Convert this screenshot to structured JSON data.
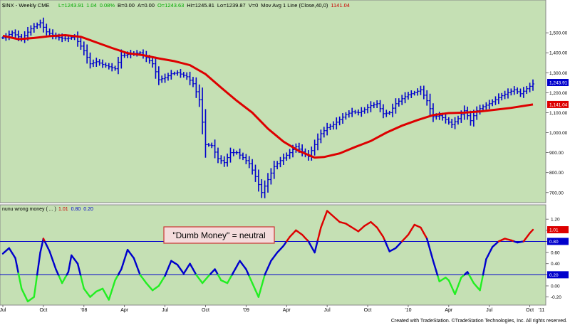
{
  "header": {
    "symbol": "$INX - Weekly  CME",
    "quote_fields": [
      {
        "text": "L=1243.91",
        "color": "#00aa00"
      },
      {
        "text": "1.04",
        "color": "#00aa00"
      },
      {
        "text": "0.08%",
        "color": "#00aa00"
      },
      {
        "text": "B=0.00",
        "color": "#000000"
      },
      {
        "text": "A=0.00",
        "color": "#000000"
      },
      {
        "text": "O=1243.63",
        "color": "#00aa00"
      },
      {
        "text": "Hi=1245.81",
        "color": "#000000"
      },
      {
        "text": "Lo=1239.87",
        "color": "#000000"
      },
      {
        "text": "V=0",
        "color": "#000000"
      },
      {
        "text": "Mov Avg 1 Line (Close,40,0)",
        "color": "#000000"
      },
      {
        "text": "1141.04",
        "color": "#cc0000"
      }
    ]
  },
  "indicator_header": {
    "name": "nunu wrong money ( ... )",
    "values": [
      {
        "text": "1.01",
        "color": "#cc0000"
      },
      {
        "text": "0.80",
        "color": "#0000cc"
      },
      {
        "text": "0.20",
        "color": "#0000cc"
      }
    ]
  },
  "annotation": "\"Dumb Money\" = neutral",
  "footer": "Created with TradeStation. ©TradeStation Technologies, Inc. All rights reserved.",
  "colors": {
    "plot_bg": "#c5e0b4",
    "price_bar": "#0000cc",
    "moving_average": "#dd0000",
    "indicator_high": "#dd0000",
    "indicator_mid": "#0000cc",
    "indicator_low": "#22ee22",
    "threshold_line": "#0000cc",
    "annotation_border": "#cc3333",
    "annotation_bg": "#f4dcdc"
  },
  "chart_data": [
    {
      "type": "candlestick",
      "title": "$INX - Weekly",
      "ylim": [
        660,
        1650
      ],
      "yticks": [
        700,
        800,
        900,
        1000,
        1100,
        1200,
        1300,
        1400,
        1500
      ],
      "ytick_labels": [
        "700.00",
        "800.00",
        "900.00",
        "1,000.00",
        "1,100.00",
        "1,200.00",
        "1,300.00",
        "1,400.00",
        "1,500.00"
      ],
      "last_price_label": "1,243.91",
      "ma_label": "1,141.04",
      "x_labels": [
        "Jul",
        "Oct",
        "'08",
        "Apr",
        "Jul",
        "Oct",
        "'09",
        "Apr",
        "Jul",
        "Oct",
        "'10",
        "Apr",
        "Jul",
        "Oct",
        "'11"
      ],
      "price_path": [
        {
          "week": 0,
          "close": 1475
        },
        {
          "week": 3,
          "close": 1500
        },
        {
          "week": 6,
          "close": 1470
        },
        {
          "week": 9,
          "close": 1520
        },
        {
          "week": 12,
          "close": 1550
        },
        {
          "week": 14,
          "close": 1505
        },
        {
          "week": 17,
          "close": 1480
        },
        {
          "week": 20,
          "close": 1470
        },
        {
          "week": 23,
          "close": 1480
        },
        {
          "week": 26,
          "close": 1410
        },
        {
          "week": 28,
          "close": 1345
        },
        {
          "week": 30,
          "close": 1355
        },
        {
          "week": 33,
          "close": 1335
        },
        {
          "week": 36,
          "close": 1320
        },
        {
          "week": 38,
          "close": 1385
        },
        {
          "week": 41,
          "close": 1395
        },
        {
          "week": 44,
          "close": 1400
        },
        {
          "week": 46,
          "close": 1375
        },
        {
          "week": 48,
          "close": 1345
        },
        {
          "week": 50,
          "close": 1265
        },
        {
          "week": 52,
          "close": 1275
        },
        {
          "week": 54,
          "close": 1295
        },
        {
          "week": 56,
          "close": 1300
        },
        {
          "week": 59,
          "close": 1280
        },
        {
          "week": 61,
          "close": 1245
        },
        {
          "week": 63,
          "close": 1165
        },
        {
          "week": 65,
          "close": 940
        },
        {
          "week": 67,
          "close": 935
        },
        {
          "week": 69,
          "close": 870
        },
        {
          "week": 71,
          "close": 850
        },
        {
          "week": 73,
          "close": 900
        },
        {
          "week": 75,
          "close": 900
        },
        {
          "week": 77,
          "close": 875
        },
        {
          "week": 79,
          "close": 845
        },
        {
          "week": 81,
          "close": 780
        },
        {
          "week": 83,
          "close": 700
        },
        {
          "week": 85,
          "close": 765
        },
        {
          "week": 87,
          "close": 830
        },
        {
          "week": 89,
          "close": 860
        },
        {
          "week": 92,
          "close": 900
        },
        {
          "week": 94,
          "close": 930
        },
        {
          "week": 96,
          "close": 905
        },
        {
          "week": 98,
          "close": 880
        },
        {
          "week": 100,
          "close": 940
        },
        {
          "week": 102,
          "close": 995
        },
        {
          "week": 104,
          "close": 1025
        },
        {
          "week": 106,
          "close": 1040
        },
        {
          "week": 108,
          "close": 1065
        },
        {
          "week": 110,
          "close": 1090
        },
        {
          "week": 112,
          "close": 1105
        },
        {
          "week": 114,
          "close": 1100
        },
        {
          "week": 116,
          "close": 1115
        },
        {
          "week": 118,
          "close": 1135
        },
        {
          "week": 120,
          "close": 1145
        },
        {
          "week": 122,
          "close": 1095
        },
        {
          "week": 124,
          "close": 1100
        },
        {
          "week": 126,
          "close": 1145
        },
        {
          "week": 128,
          "close": 1170
        },
        {
          "week": 130,
          "close": 1190
        },
        {
          "week": 132,
          "close": 1200
        },
        {
          "week": 134,
          "close": 1215
        },
        {
          "week": 136,
          "close": 1160
        },
        {
          "week": 138,
          "close": 1080
        },
        {
          "week": 140,
          "close": 1085
        },
        {
          "week": 142,
          "close": 1065
        },
        {
          "week": 144,
          "close": 1040
        },
        {
          "week": 146,
          "close": 1070
        },
        {
          "week": 148,
          "close": 1110
        },
        {
          "week": 150,
          "close": 1060
        },
        {
          "week": 152,
          "close": 1110
        },
        {
          "week": 154,
          "close": 1130
        },
        {
          "week": 156,
          "close": 1145
        },
        {
          "week": 158,
          "close": 1165
        },
        {
          "week": 160,
          "close": 1185
        },
        {
          "week": 162,
          "close": 1200
        },
        {
          "week": 164,
          "close": 1215
        },
        {
          "week": 166,
          "close": 1195
        },
        {
          "week": 168,
          "close": 1220
        },
        {
          "week": 170,
          "close": 1244
        }
      ],
      "moving_average_40": [
        {
          "week": 0,
          "value": 1485
        },
        {
          "week": 5,
          "value": 1468
        },
        {
          "week": 10,
          "value": 1474
        },
        {
          "week": 15,
          "value": 1483
        },
        {
          "week": 20,
          "value": 1488
        },
        {
          "week": 25,
          "value": 1480
        },
        {
          "week": 30,
          "value": 1452
        },
        {
          "week": 35,
          "value": 1424
        },
        {
          "week": 40,
          "value": 1398
        },
        {
          "week": 45,
          "value": 1388
        },
        {
          "week": 50,
          "value": 1372
        },
        {
          "week": 55,
          "value": 1358
        },
        {
          "week": 60,
          "value": 1338
        },
        {
          "week": 65,
          "value": 1293
        },
        {
          "week": 70,
          "value": 1225
        },
        {
          "week": 75,
          "value": 1160
        },
        {
          "week": 80,
          "value": 1100
        },
        {
          "week": 85,
          "value": 1020
        },
        {
          "week": 90,
          "value": 955
        },
        {
          "week": 95,
          "value": 908
        },
        {
          "week": 100,
          "value": 875
        },
        {
          "week": 103,
          "value": 878
        },
        {
          "week": 108,
          "value": 896
        },
        {
          "week": 113,
          "value": 928
        },
        {
          "week": 118,
          "value": 958
        },
        {
          "week": 123,
          "value": 1000
        },
        {
          "week": 128,
          "value": 1035
        },
        {
          "week": 133,
          "value": 1063
        },
        {
          "week": 138,
          "value": 1088
        },
        {
          "week": 143,
          "value": 1098
        },
        {
          "week": 148,
          "value": 1100
        },
        {
          "week": 153,
          "value": 1106
        },
        {
          "week": 158,
          "value": 1115
        },
        {
          "week": 163,
          "value": 1124
        },
        {
          "week": 170,
          "value": 1141
        }
      ]
    },
    {
      "type": "line",
      "title": "nunu wrong money",
      "ylim": [
        -0.32,
        1.42
      ],
      "yticks": [
        -0.2,
        0.0,
        0.2,
        0.4,
        0.6,
        0.8,
        1.0,
        1.2
      ],
      "ytick_labels": [
        "-0.20",
        "0.00",
        "0.20",
        "0.40",
        "0.60",
        "0.80",
        "1.00",
        "1.20"
      ],
      "thresholds": [
        0.8,
        0.2
      ],
      "threshold_labels": [
        "0.80",
        "0.20"
      ],
      "last_value_label": "1.01",
      "series": [
        {
          "values": [
            {
              "week": 0,
              "value": 0.58
            },
            {
              "week": 2,
              "value": 0.68
            },
            {
              "week": 4,
              "value": 0.5
            },
            {
              "week": 6,
              "value": -0.05
            },
            {
              "week": 8,
              "value": -0.28
            },
            {
              "week": 10,
              "value": -0.2
            },
            {
              "week": 12,
              "value": 0.6
            },
            {
              "week": 13,
              "value": 0.85
            },
            {
              "week": 15,
              "value": 0.62
            },
            {
              "week": 17,
              "value": 0.3
            },
            {
              "week": 19,
              "value": 0.05
            },
            {
              "week": 21,
              "value": 0.25
            },
            {
              "week": 22,
              "value": 0.55
            },
            {
              "week": 24,
              "value": 0.4
            },
            {
              "week": 26,
              "value": -0.05
            },
            {
              "week": 28,
              "value": -0.2
            },
            {
              "week": 30,
              "value": -0.1
            },
            {
              "week": 32,
              "value": -0.05
            },
            {
              "week": 34,
              "value": -0.25
            },
            {
              "week": 36,
              "value": 0.1
            },
            {
              "week": 38,
              "value": 0.3
            },
            {
              "week": 40,
              "value": 0.65
            },
            {
              "week": 42,
              "value": 0.5
            },
            {
              "week": 44,
              "value": 0.2
            },
            {
              "week": 46,
              "value": 0.05
            },
            {
              "week": 48,
              "value": -0.08
            },
            {
              "week": 50,
              "value": 0.0
            },
            {
              "week": 52,
              "value": 0.18
            },
            {
              "week": 54,
              "value": 0.45
            },
            {
              "week": 56,
              "value": 0.38
            },
            {
              "week": 58,
              "value": 0.22
            },
            {
              "week": 60,
              "value": 0.4
            },
            {
              "week": 62,
              "value": 0.2
            },
            {
              "week": 64,
              "value": 0.05
            },
            {
              "week": 66,
              "value": 0.18
            },
            {
              "week": 68,
              "value": 0.3
            },
            {
              "week": 70,
              "value": 0.1
            },
            {
              "week": 72,
              "value": 0.05
            },
            {
              "week": 74,
              "value": 0.25
            },
            {
              "week": 76,
              "value": 0.45
            },
            {
              "week": 78,
              "value": 0.3
            },
            {
              "week": 80,
              "value": 0.05
            },
            {
              "week": 82,
              "value": -0.2
            },
            {
              "week": 84,
              "value": 0.2
            },
            {
              "week": 86,
              "value": 0.45
            },
            {
              "week": 88,
              "value": 0.6
            },
            {
              "week": 90,
              "value": 0.72
            },
            {
              "week": 92,
              "value": 0.88
            },
            {
              "week": 94,
              "value": 1.0
            },
            {
              "week": 96,
              "value": 0.92
            },
            {
              "week": 98,
              "value": 0.8
            },
            {
              "week": 100,
              "value": 0.6
            },
            {
              "week": 102,
              "value": 1.05
            },
            {
              "week": 104,
              "value": 1.35
            },
            {
              "week": 106,
              "value": 1.25
            },
            {
              "week": 108,
              "value": 1.15
            },
            {
              "week": 110,
              "value": 1.12
            },
            {
              "week": 112,
              "value": 1.05
            },
            {
              "week": 114,
              "value": 0.98
            },
            {
              "week": 116,
              "value": 1.08
            },
            {
              "week": 118,
              "value": 1.15
            },
            {
              "week": 120,
              "value": 1.05
            },
            {
              "week": 122,
              "value": 0.88
            },
            {
              "week": 124,
              "value": 0.62
            },
            {
              "week": 126,
              "value": 0.68
            },
            {
              "week": 128,
              "value": 0.8
            },
            {
              "week": 130,
              "value": 0.92
            },
            {
              "week": 132,
              "value": 1.1
            },
            {
              "week": 134,
              "value": 1.05
            },
            {
              "week": 136,
              "value": 0.85
            },
            {
              "week": 138,
              "value": 0.45
            },
            {
              "week": 140,
              "value": 0.08
            },
            {
              "week": 142,
              "value": 0.15
            },
            {
              "week": 143,
              "value": 0.1
            },
            {
              "week": 145,
              "value": -0.15
            },
            {
              "week": 147,
              "value": 0.15
            },
            {
              "week": 149,
              "value": 0.25
            },
            {
              "week": 151,
              "value": 0.05
            },
            {
              "week": 153,
              "value": -0.08
            },
            {
              "week": 155,
              "value": 0.48
            },
            {
              "week": 157,
              "value": 0.7
            },
            {
              "week": 159,
              "value": 0.8
            },
            {
              "week": 161,
              "value": 0.85
            },
            {
              "week": 163,
              "value": 0.82
            },
            {
              "week": 165,
              "value": 0.78
            },
            {
              "week": 167,
              "value": 0.8
            },
            {
              "week": 169,
              "value": 0.95
            },
            {
              "week": 170,
              "value": 1.01
            }
          ]
        }
      ]
    }
  ]
}
